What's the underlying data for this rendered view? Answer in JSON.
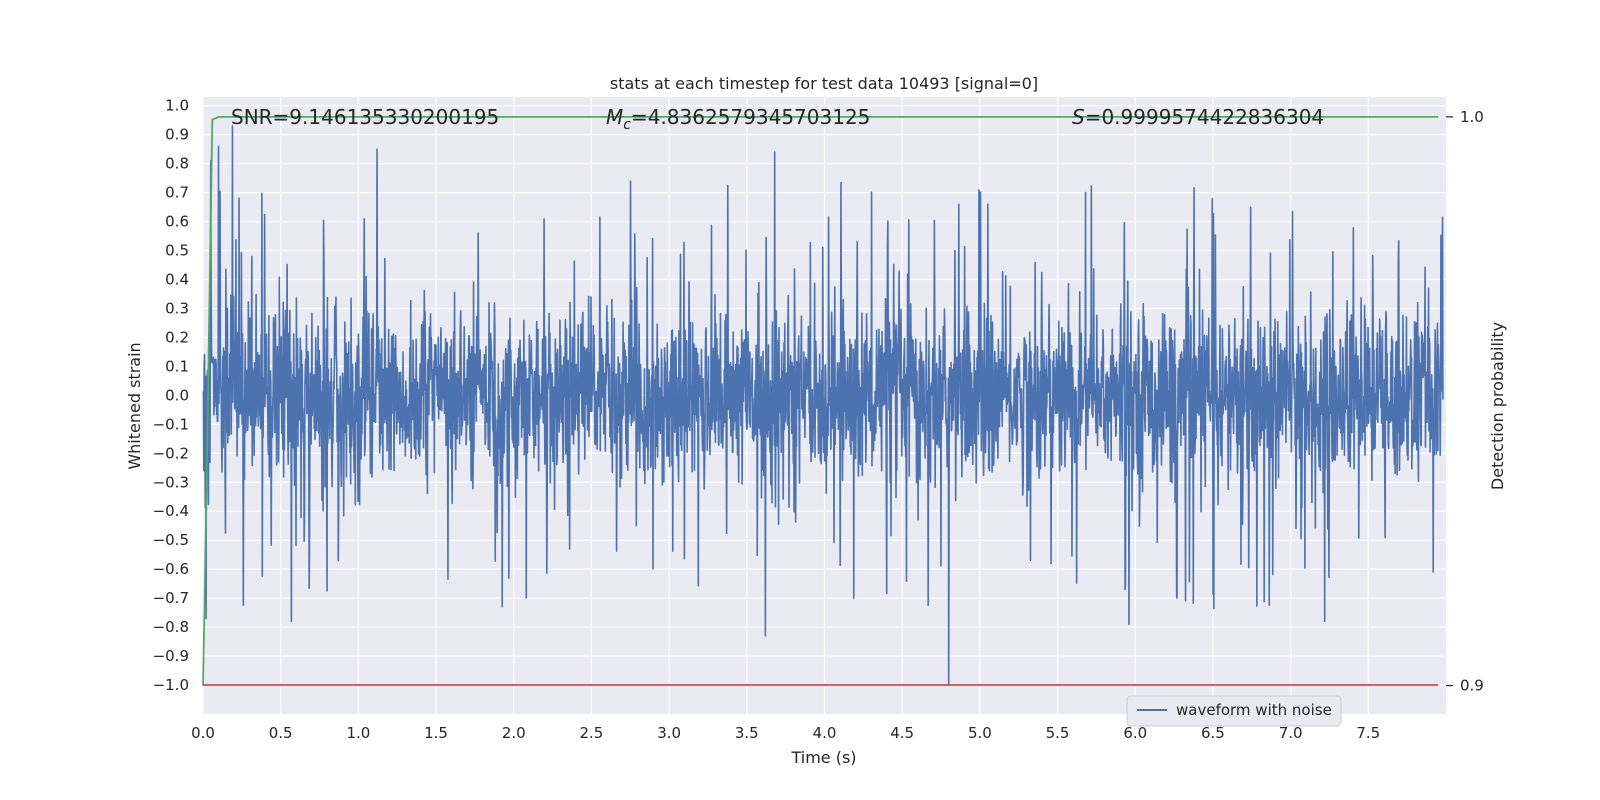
{
  "chart_data": {
    "type": "line",
    "title": "stats at each timestep for test data 10493 [signal=0]",
    "xlabel": "Time (s)",
    "ylabel": "Whitened strain",
    "y2label": "Detection probability",
    "xlim": [
      0.0,
      8.0
    ],
    "ylim": [
      -1.1,
      1.03
    ],
    "y2lim": [
      0.895,
      1.0035
    ],
    "xticks": [
      "0.0",
      "0.5",
      "1.0",
      "1.5",
      "2.0",
      "2.5",
      "3.0",
      "3.5",
      "4.0",
      "4.5",
      "5.0",
      "5.5",
      "6.0",
      "6.5",
      "7.0",
      "7.5"
    ],
    "yticks": [
      "1.0",
      "0.9",
      "0.8",
      "0.7",
      "0.6",
      "0.5",
      "0.4",
      "0.3",
      "0.2",
      "0.1",
      "0.0",
      "−0.1",
      "−0.2",
      "−0.3",
      "−0.4",
      "−0.5",
      "−0.6",
      "−0.7",
      "−0.8",
      "−0.9",
      "−1.0"
    ],
    "y2ticks": [
      "1.0",
      "0.9"
    ],
    "grid": true,
    "legend_position": "lower-right",
    "annotations": {
      "snr": "SNR=9.146135330200195",
      "mc_symbol": "M",
      "mc_sub": "c",
      "mc_value": "=4.8362579345703125",
      "s_symbol": "S",
      "s_value": "=0.9999574422836304"
    },
    "series": [
      {
        "name": "waveform with noise",
        "axis": "left",
        "color": "#4c72b0",
        "description_range": [
          -1.0,
          0.93
        ],
        "notable_spikes": [
          {
            "x": 0.02,
            "y": -0.77
          },
          {
            "x": 0.05,
            "y": 0.81
          },
          {
            "x": 0.1,
            "y": 0.86
          },
          {
            "x": 0.19,
            "y": 0.93
          },
          {
            "x": 0.57,
            "y": -0.78
          },
          {
            "x": 1.12,
            "y": 0.85
          },
          {
            "x": 3.62,
            "y": -0.83
          },
          {
            "x": 3.68,
            "y": 0.84
          },
          {
            "x": 4.8,
            "y": -1.0
          },
          {
            "x": 5.96,
            "y": -0.79
          },
          {
            "x": 7.22,
            "y": -0.78
          }
        ]
      },
      {
        "name": "",
        "axis": "right",
        "color": "#55a868",
        "x": [
          0.0,
          0.02,
          0.04,
          0.06,
          0.1,
          7.95
        ],
        "y": [
          0.9,
          0.93,
          0.965,
          0.9995,
          1.0,
          1.0
        ]
      },
      {
        "name": "",
        "axis": "left",
        "color": "#c44e52",
        "x": [
          0.0,
          7.95
        ],
        "y": [
          -1.0,
          -1.0
        ]
      }
    ],
    "colors": {
      "plot_background": "#eaeaf2",
      "grid": "#ffffff",
      "text": "#262626"
    }
  }
}
